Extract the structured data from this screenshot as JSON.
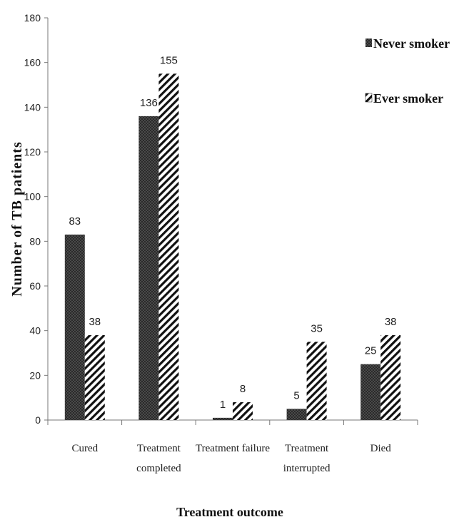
{
  "chart_data": {
    "type": "bar",
    "categories": [
      [
        "Cured"
      ],
      [
        "Treatment",
        "completed"
      ],
      [
        "Treatment failure"
      ],
      [
        "Treatment",
        "interrupted"
      ],
      [
        "Died"
      ]
    ],
    "series": [
      {
        "name": "Never smoker",
        "values": [
          83,
          136,
          1,
          5,
          25
        ],
        "labels": [
          "83",
          "136",
          "1",
          "5",
          "25"
        ],
        "pattern": "dots",
        "color": "#3a3a3a"
      },
      {
        "name": "Ever smoker",
        "values": [
          38,
          155,
          8,
          35,
          38
        ],
        "labels": [
          "38",
          "155",
          "8",
          "35",
          "38"
        ],
        "pattern": "hatch",
        "color": "#111111"
      }
    ],
    "xlabel": "Treatment outcome",
    "ylabel": "Number of TB patients",
    "ylim": [
      0,
      180
    ],
    "yticks": [
      0,
      20,
      40,
      60,
      80,
      100,
      120,
      140,
      160,
      180
    ],
    "grid": false,
    "legend_position": "top-right"
  }
}
